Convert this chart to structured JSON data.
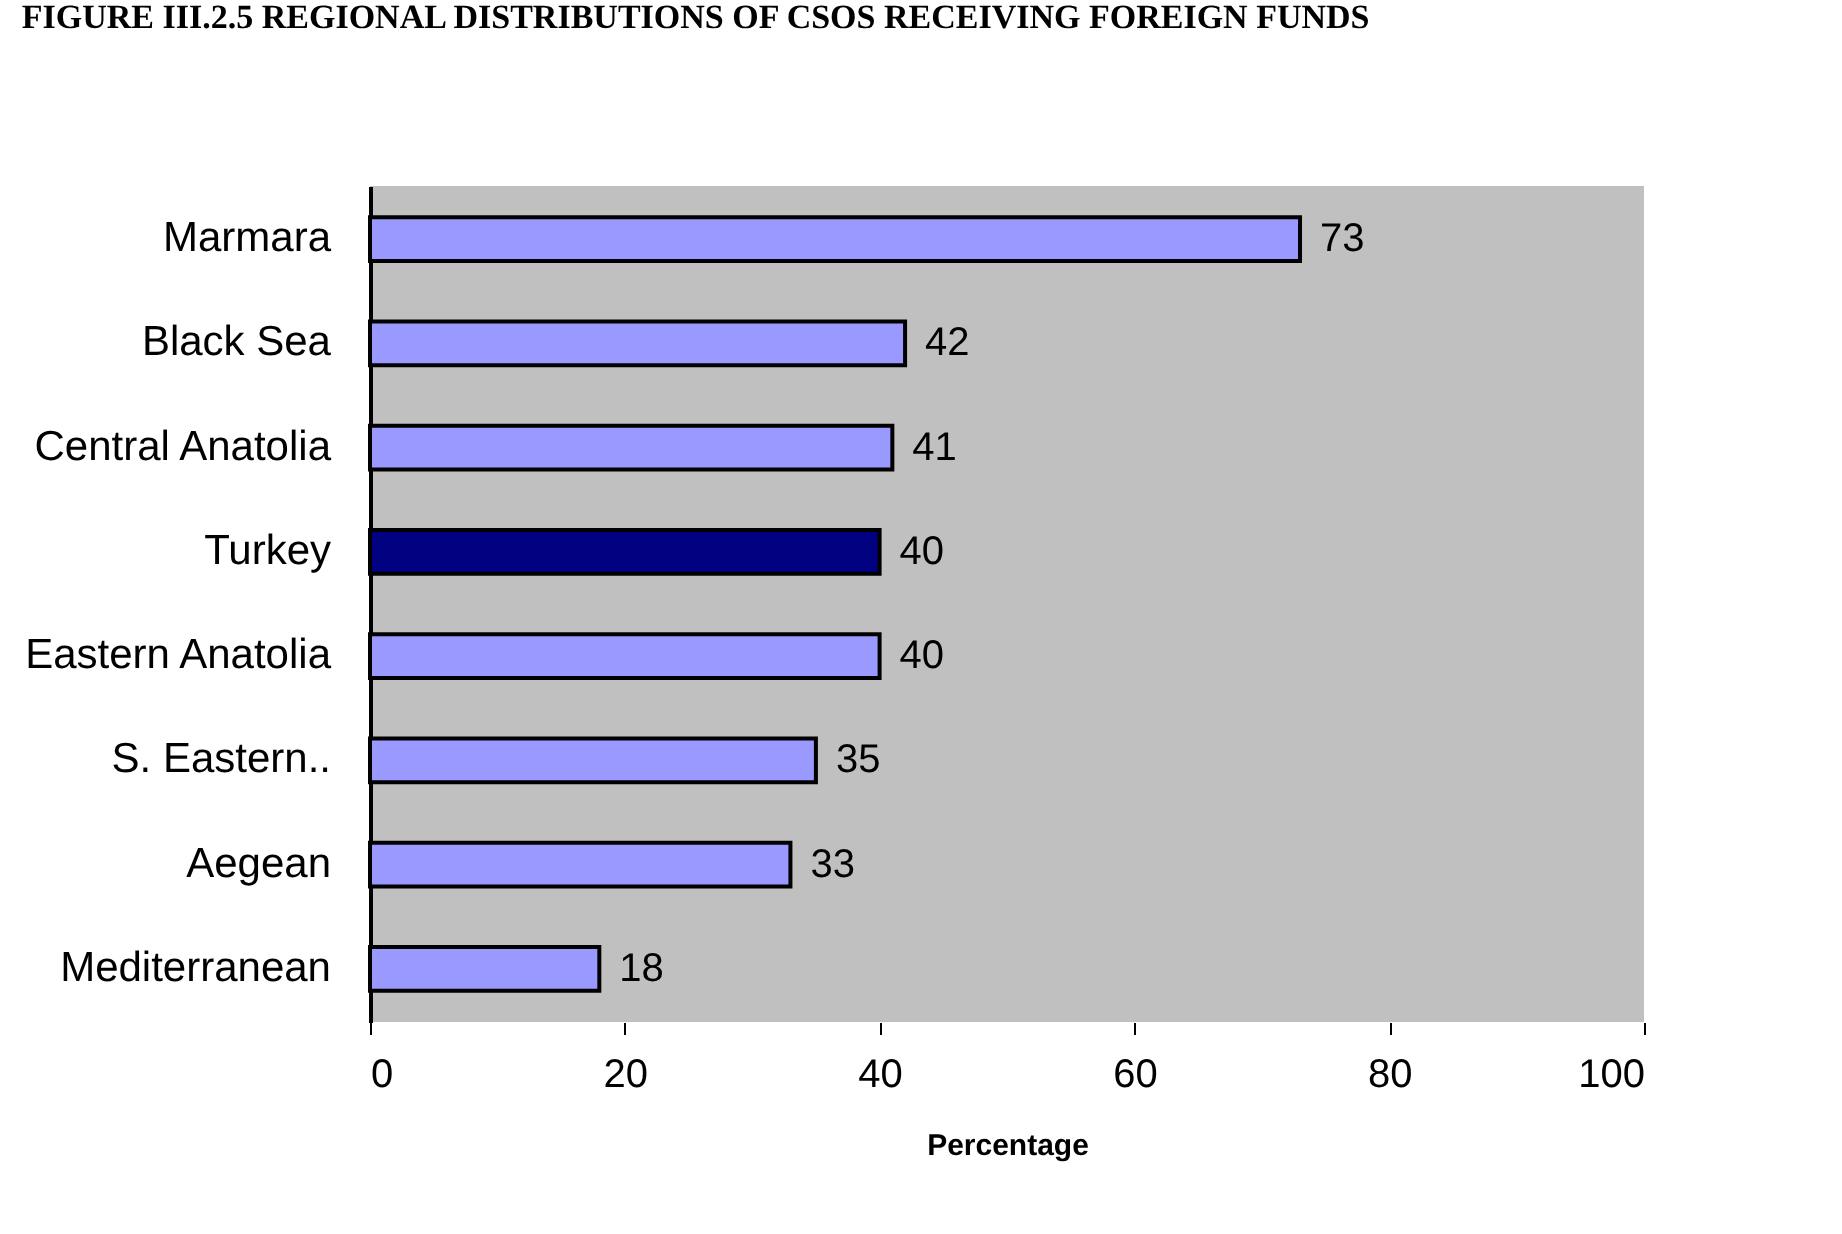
{
  "chart_data": {
    "type": "bar",
    "orientation": "horizontal",
    "title": "FIGURE III.2.5 REGIONAL DISTRIBUTIONS OF CSOS RECEIVING FOREIGN FUNDS",
    "xlabel": "Percentage",
    "categories": [
      "Marmara",
      "Black Sea",
      "Central Anatolia",
      "Turkey",
      "Eastern Anatolia",
      "S. Eastern..",
      "Aegean",
      "Mediterranean"
    ],
    "values": [
      73,
      42,
      41,
      40,
      40,
      35,
      33,
      18
    ],
    "colors": [
      "#9999ff",
      "#9999ff",
      "#9999ff",
      "#000080",
      "#9999ff",
      "#9999ff",
      "#9999ff",
      "#9999ff"
    ],
    "xlim": [
      0,
      100
    ],
    "xticks": [
      0,
      20,
      40,
      60,
      80,
      100
    ],
    "grid": false,
    "data_labels": true
  }
}
